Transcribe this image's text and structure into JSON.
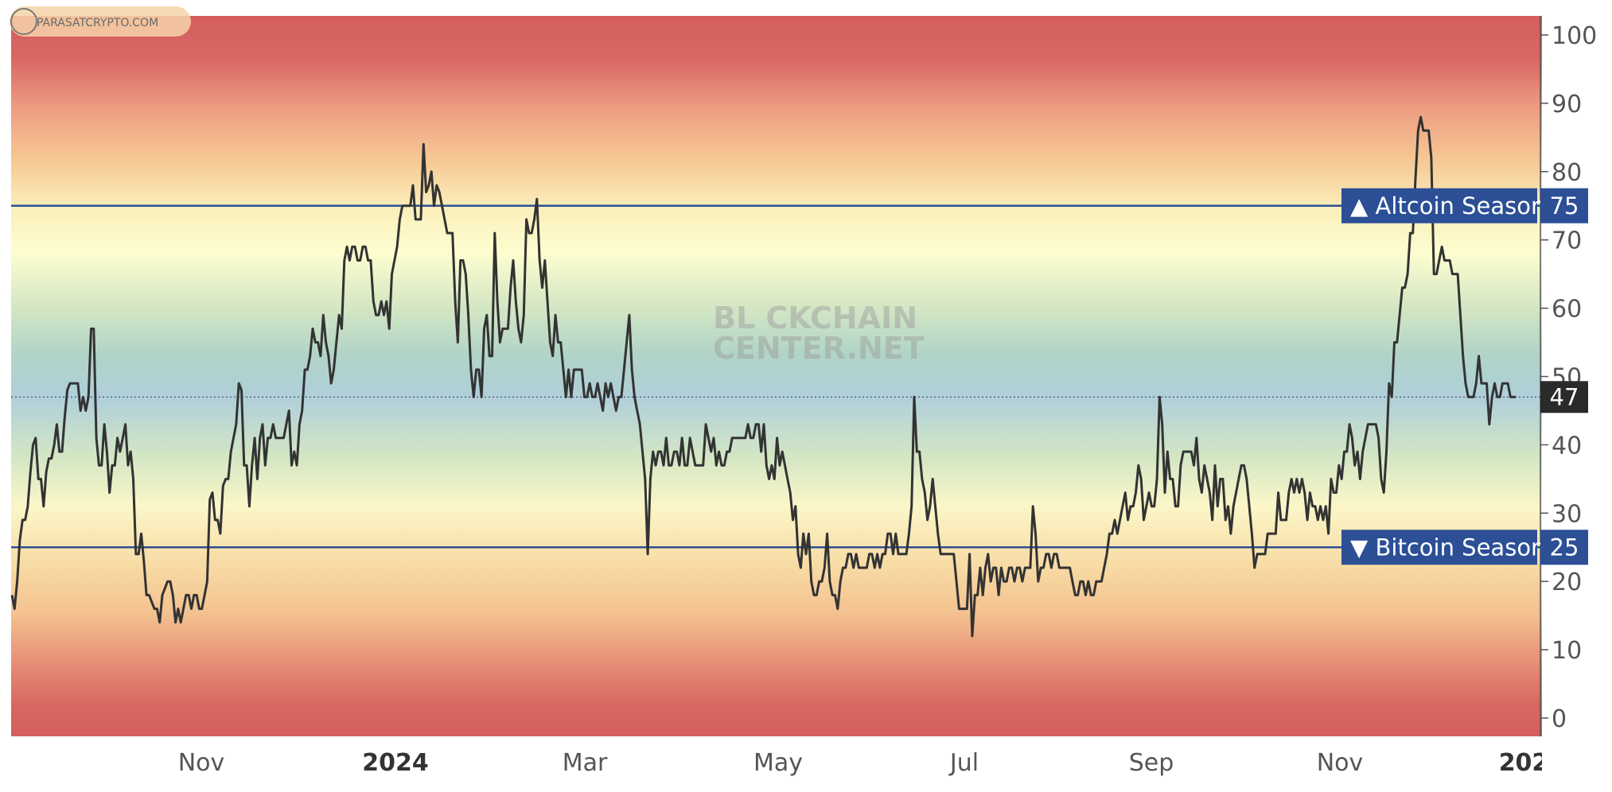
{
  "chart_data": {
    "type": "line",
    "ylim": [
      -3,
      104
    ],
    "y_ticks": [
      0,
      10,
      20,
      30,
      40,
      50,
      60,
      70,
      80,
      90,
      100
    ],
    "x_tick_labels": [
      "Nov",
      "2024",
      "Mar",
      "May",
      "Jul",
      "Sep",
      "Nov",
      "202"
    ],
    "x_tick_bold": [
      false,
      true,
      false,
      false,
      false,
      false,
      false,
      true
    ],
    "current_value": "47",
    "thresholds": [
      {
        "value": 75,
        "label": "▲ Altcoin Season",
        "value_label": "75",
        "color": "#2c4f96"
      },
      {
        "value": 25,
        "label": "▼ Bitcoin Season",
        "value_label": "25",
        "color": "#2c4f96"
      }
    ],
    "background_gradient": [
      "#d45f5e",
      "#f6c894",
      "#fdfdd0",
      "#b1d4c6",
      "#b0cfdb",
      "#fbf6c8",
      "#f3c18f",
      "#d45f5e"
    ],
    "line_color": "#333333",
    "series": [
      {
        "values": [
          18,
          16,
          20,
          26,
          29,
          29,
          31,
          36,
          40,
          41,
          35,
          35,
          31,
          36,
          38,
          38,
          40,
          43,
          39,
          39,
          44,
          48,
          49,
          49,
          49,
          49,
          45,
          47,
          45,
          47,
          57,
          57,
          41,
          37,
          37,
          43,
          39,
          33,
          37,
          37,
          41,
          39,
          41,
          43,
          37,
          39,
          35,
          24,
          24,
          27,
          23,
          18,
          18,
          17,
          16,
          16,
          14,
          18,
          19,
          20,
          20,
          18,
          14,
          16,
          14,
          16,
          18,
          18,
          16,
          18,
          18,
          16,
          16,
          18,
          20,
          32,
          33,
          29,
          29,
          27,
          34,
          35,
          35,
          39,
          41,
          43,
          49,
          48,
          37,
          37,
          31,
          37,
          41,
          35,
          41,
          43,
          37,
          41,
          41,
          43,
          41,
          41,
          41,
          41,
          43,
          45,
          37,
          39,
          37,
          43,
          45,
          51,
          51,
          53,
          57,
          55,
          55,
          53,
          59,
          55,
          53,
          49,
          51,
          55,
          59,
          57,
          67,
          69,
          67,
          69,
          69,
          67,
          67,
          69,
          69,
          67,
          67,
          61,
          59,
          59,
          61,
          59,
          61,
          57,
          65,
          67,
          69,
          73,
          75,
          75,
          75,
          75,
          78,
          73,
          73,
          73,
          84,
          77,
          78,
          80,
          75,
          78,
          77,
          75,
          73,
          71,
          71,
          71,
          61,
          55,
          67,
          67,
          65,
          59,
          51,
          47,
          51,
          51,
          47,
          57,
          59,
          53,
          53,
          71,
          61,
          55,
          57,
          57,
          57,
          63,
          67,
          61,
          57,
          55,
          59,
          73,
          71,
          71,
          73,
          76,
          67,
          63,
          67,
          61,
          55,
          53,
          59,
          55,
          55,
          51,
          47,
          51,
          47,
          51,
          51,
          51,
          51,
          47,
          47,
          49,
          47,
          47,
          49,
          47,
          45,
          49,
          47,
          49,
          47,
          45,
          47,
          47,
          51,
          55,
          59,
          51,
          47,
          45,
          43,
          39,
          35,
          24,
          35,
          39,
          37,
          39,
          39,
          37,
          41,
          37,
          37,
          39,
          39,
          37,
          41,
          37,
          37,
          41,
          39,
          37,
          37,
          37,
          37,
          43,
          41,
          39,
          41,
          37,
          39,
          37,
          37,
          39,
          39,
          41,
          41,
          41,
          41,
          41,
          41,
          43,
          41,
          41,
          43,
          43,
          39,
          43,
          37,
          35,
          37,
          35,
          41,
          37,
          39,
          37,
          35,
          33,
          29,
          31,
          24,
          22,
          27,
          24,
          27,
          20,
          18,
          18,
          20,
          20,
          22,
          27,
          20,
          18,
          18,
          16,
          20,
          22,
          22,
          24,
          24,
          22,
          24,
          22,
          22,
          22,
          22,
          24,
          24,
          22,
          24,
          22,
          24,
          24,
          27,
          27,
          24,
          27,
          24,
          24,
          24,
          24,
          27,
          31,
          47,
          39,
          39,
          35,
          33,
          29,
          31,
          35,
          31,
          27,
          24,
          24,
          24,
          24,
          24,
          24,
          20,
          16,
          16,
          16,
          16,
          24,
          12,
          18,
          18,
          22,
          18,
          22,
          24,
          20,
          22,
          22,
          18,
          22,
          20,
          20,
          22,
          22,
          20,
          22,
          22,
          20,
          22,
          22,
          22,
          31,
          27,
          20,
          22,
          22,
          24,
          24,
          22,
          24,
          24,
          22,
          22,
          22,
          22,
          22,
          20,
          18,
          18,
          20,
          20,
          18,
          20,
          18,
          18,
          20,
          20,
          20,
          22,
          24,
          27,
          27,
          29,
          27,
          29,
          31,
          33,
          29,
          31,
          31,
          33,
          37,
          35,
          29,
          31,
          33,
          31,
          31,
          35,
          47,
          43,
          33,
          39,
          35,
          35,
          31,
          31,
          37,
          39,
          39,
          39,
          39,
          37,
          41,
          35,
          33,
          37,
          35,
          33,
          29,
          37,
          31,
          35,
          35,
          29,
          31,
          27,
          31,
          33,
          35,
          37,
          37,
          35,
          31,
          27,
          22,
          24,
          24,
          24,
          24,
          27,
          27,
          27,
          27,
          33,
          29,
          29,
          29,
          33,
          35,
          33,
          35,
          33,
          35,
          33,
          29,
          33,
          31,
          31,
          29,
          31,
          29,
          31,
          27,
          35,
          33,
          33,
          37,
          35,
          39,
          39,
          43,
          41,
          37,
          39,
          35,
          39,
          41,
          43,
          43,
          43,
          43,
          41,
          35,
          33,
          39,
          49,
          47,
          55,
          55,
          59,
          63,
          63,
          65,
          71,
          71,
          79,
          86,
          88,
          86,
          86,
          86,
          82,
          65,
          65,
          67,
          69,
          67,
          67,
          67,
          65,
          65,
          65,
          59,
          53,
          49,
          47,
          47,
          47,
          49,
          53,
          49,
          49,
          49,
          43,
          47,
          49,
          47,
          47,
          49,
          49,
          49,
          47,
          47,
          47
        ]
      }
    ]
  },
  "watermark": {
    "line1": "BL CKCHAIN",
    "line2": "CENTER.NET"
  },
  "logo_text": "PARASATCRYPTO.COM"
}
